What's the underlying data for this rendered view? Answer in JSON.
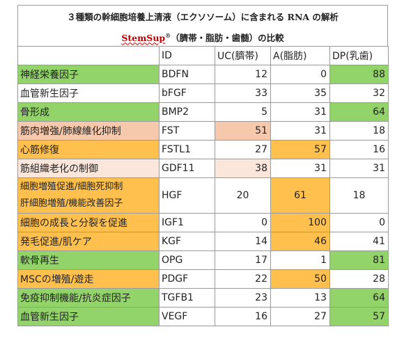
{
  "title": {
    "line1": "３種類の幹細胞培養上清液（エクソソーム）に含まれる RNA の解析",
    "brand": "StemSup",
    "brand_mark": "®",
    "line2_rest": "（臍帯・脂肪・歯髄）の比較"
  },
  "colors": {
    "green": "#92d36a",
    "orange": "#ffc04d",
    "peach": "#f6c9ad",
    "pale": "#fbe6dc"
  },
  "table": {
    "headers": [
      "",
      "ID",
      "UC(臍帯)",
      "A(脂肪)",
      "DP(乳歯)"
    ],
    "rows": [
      {
        "name": "神経栄養因子",
        "id": "BDFN",
        "uc": "12",
        "a": "0",
        "dp": "88"
      },
      {
        "name": "血管新生因子",
        "id": "bFGF",
        "uc": "33",
        "a": "35",
        "dp": "32"
      },
      {
        "name": "骨形成",
        "id": "BMP2",
        "uc": "5",
        "a": "31",
        "dp": "64"
      },
      {
        "name": "筋肉増強/肺線維化抑制",
        "id": "FST",
        "uc": "51",
        "a": "31",
        "dp": "18"
      },
      {
        "name": "心筋修復",
        "id": "FSTL1",
        "uc": "27",
        "a": "57",
        "dp": "16"
      },
      {
        "name": "筋組織老化の制御",
        "id": "GDF11",
        "uc": "38",
        "a": "31",
        "dp": "31"
      },
      {
        "name": "細胞増殖促進/細胞死抑制",
        "name2": "肝細胞増殖/機能改善因子",
        "id": "HGF",
        "uc": "20",
        "a": "61",
        "dp": "18"
      },
      {
        "name": "細胞の成長と分裂を促進",
        "id": "IGF1",
        "uc": "0",
        "a": "100",
        "dp": "0"
      },
      {
        "name": "発毛促進/肌ケア",
        "id": "KGF",
        "uc": "14",
        "a": "46",
        "dp": "41"
      },
      {
        "name": "軟骨再生",
        "id": "OPG",
        "uc": "17",
        "a": "1",
        "dp": "81"
      },
      {
        "name": "MSCの増殖/遊走",
        "id": "PDGF",
        "uc": "22",
        "a": "50",
        "dp": "28"
      },
      {
        "name": "免疫抑制機能/抗炎症因子",
        "id": "TGFB1",
        "uc": "23",
        "a": "13",
        "dp": "64"
      },
      {
        "name": "血管新生因子",
        "id": "VEGF",
        "uc": "16",
        "a": "27",
        "dp": "57"
      }
    ]
  }
}
